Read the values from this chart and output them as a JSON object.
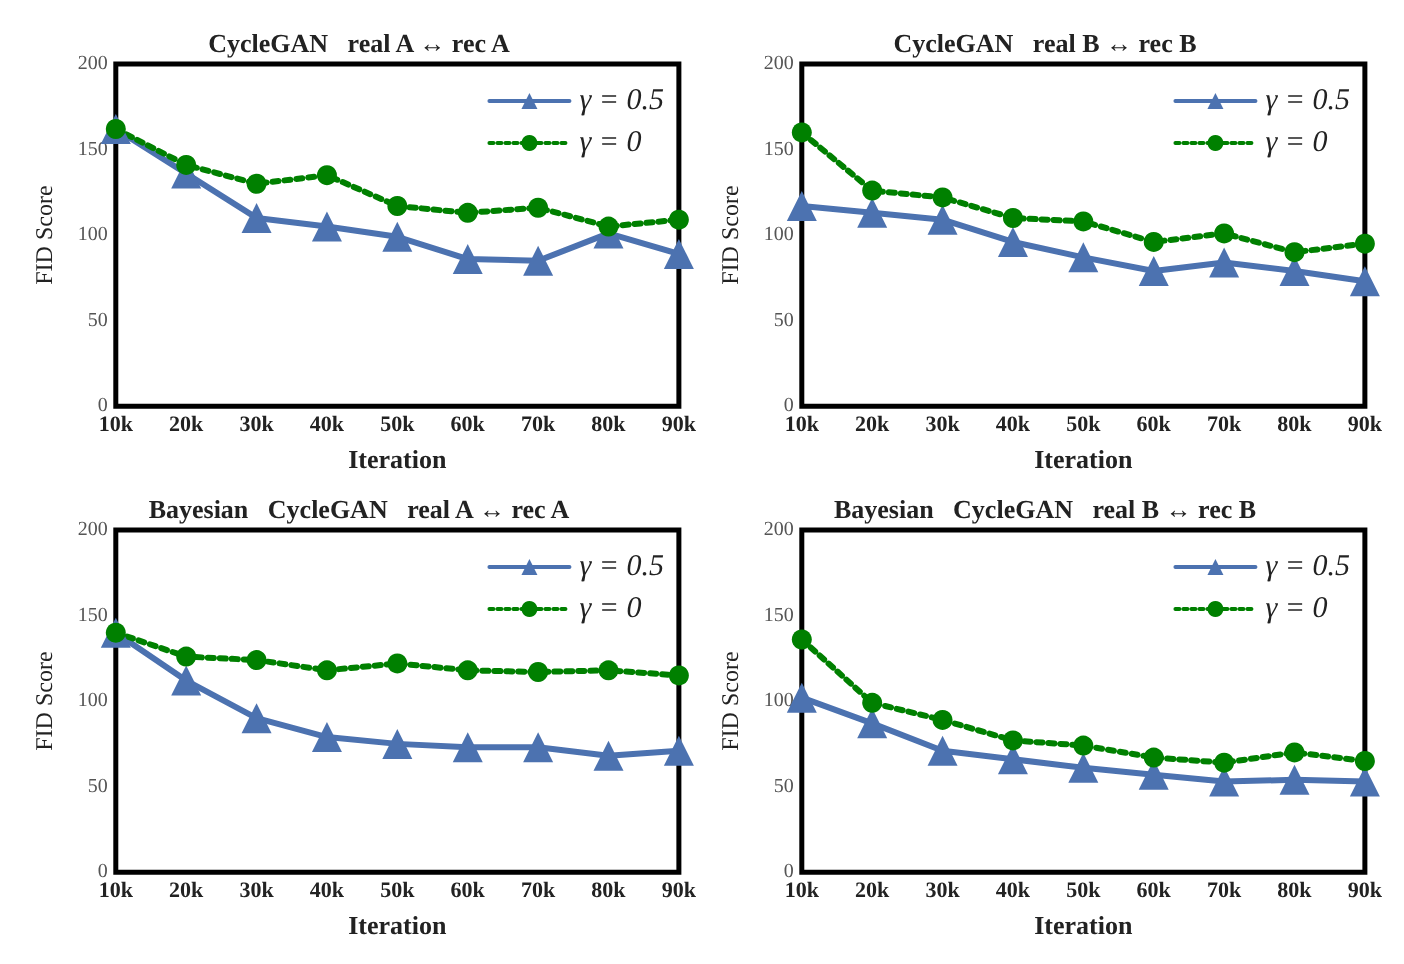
{
  "chart_data": [
    {
      "type": "line",
      "title": "CycleGAN   real A ↔ rec A",
      "xlabel": "Iteration",
      "ylabel": "FID Score",
      "categories": [
        "10k",
        "20k",
        "30k",
        "40k",
        "50k",
        "60k",
        "70k",
        "80k",
        "90k"
      ],
      "ylim": [
        0,
        200
      ],
      "yticks": [
        0,
        50,
        100,
        150,
        200
      ],
      "grid": false,
      "legend": "top right",
      "series": [
        {
          "name": "γ = 0.5",
          "color": "#4c72b0",
          "marker": "triangle",
          "line_style": "solid",
          "values": [
            162,
            136,
            110,
            105,
            99,
            86,
            85,
            101,
            89
          ]
        },
        {
          "name": "γ = 0",
          "color": "#008000",
          "marker": "circle",
          "line_style": "dotted",
          "values": [
            162,
            141,
            130,
            135,
            117,
            113,
            116,
            105,
            109
          ]
        }
      ]
    },
    {
      "type": "line",
      "title": "CycleGAN   real B ↔ rec B",
      "xlabel": "Iteration",
      "ylabel": "FID Score",
      "categories": [
        "10k",
        "20k",
        "30k",
        "40k",
        "50k",
        "60k",
        "70k",
        "80k",
        "90k"
      ],
      "ylim": [
        0,
        200
      ],
      "yticks": [
        0,
        50,
        100,
        150,
        200
      ],
      "grid": false,
      "legend": "top right",
      "series": [
        {
          "name": "γ = 0.5",
          "color": "#4c72b0",
          "marker": "triangle",
          "line_style": "solid",
          "values": [
            117,
            113,
            109,
            96,
            87,
            79,
            84,
            79,
            73
          ]
        },
        {
          "name": "γ = 0",
          "color": "#008000",
          "marker": "circle",
          "line_style": "dotted",
          "values": [
            160,
            126,
            122,
            110,
            108,
            96,
            101,
            90,
            95
          ]
        }
      ]
    },
    {
      "type": "line",
      "title": "Bayesian   CycleGAN   real A ↔ rec A",
      "xlabel": "Iteration",
      "ylabel": "FID Score",
      "categories": [
        "10k",
        "20k",
        "30k",
        "40k",
        "50k",
        "60k",
        "70k",
        "80k",
        "90k"
      ],
      "ylim": [
        0,
        200
      ],
      "yticks": [
        0,
        50,
        100,
        150,
        200
      ],
      "grid": false,
      "legend": "top right",
      "series": [
        {
          "name": "γ = 0.5",
          "color": "#4c72b0",
          "marker": "triangle",
          "line_style": "solid",
          "values": [
            140,
            112,
            90,
            79,
            75,
            73,
            73,
            68,
            71
          ]
        },
        {
          "name": "γ = 0",
          "color": "#008000",
          "marker": "circle",
          "line_style": "dotted",
          "values": [
            140,
            126,
            124,
            118,
            122,
            118,
            117,
            118,
            115
          ]
        }
      ]
    },
    {
      "type": "line",
      "title": "Bayesian   CycleGAN   real B ↔ rec B",
      "xlabel": "Iteration",
      "ylabel": "FID Score",
      "categories": [
        "10k",
        "20k",
        "30k",
        "40k",
        "50k",
        "60k",
        "70k",
        "80k",
        "90k"
      ],
      "ylim": [
        0,
        200
      ],
      "yticks": [
        0,
        50,
        100,
        150,
        200
      ],
      "grid": false,
      "legend": "top right",
      "series": [
        {
          "name": "γ = 0.5",
          "color": "#4c72b0",
          "marker": "triangle",
          "line_style": "solid",
          "values": [
            102,
            87,
            71,
            66,
            61,
            57,
            53,
            54,
            53
          ]
        },
        {
          "name": "γ = 0",
          "color": "#008000",
          "marker": "circle",
          "line_style": "dotted",
          "values": [
            136,
            99,
            89,
            77,
            74,
            67,
            64,
            70,
            65
          ]
        }
      ]
    }
  ]
}
